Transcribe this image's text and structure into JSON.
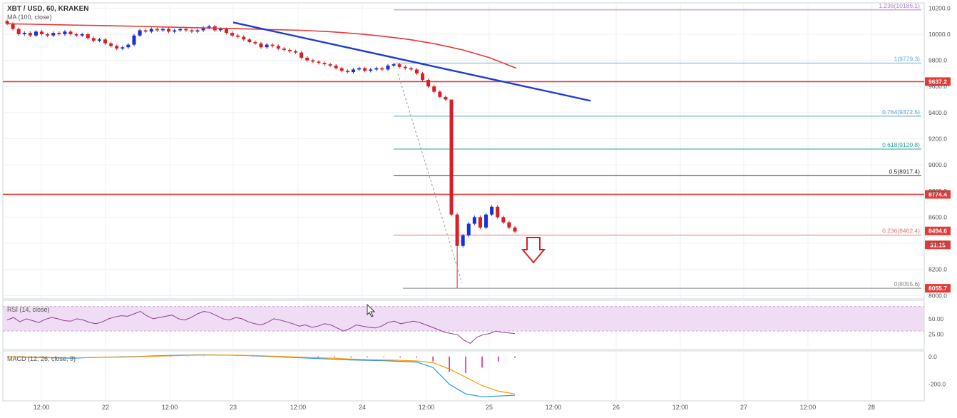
{
  "header": {
    "symbol": "XBT / USD, 60, KRAKEN",
    "ma_label": "MA (100, close)"
  },
  "rsi_label": "RSI (14, close)",
  "macd_label": "MACD (12, 26, close, 9)",
  "colors": {
    "up": "#1b2ed8",
    "down": "#d81f26",
    "ma": "#e53935",
    "trend": "#1e3bd6",
    "level": "#e53935",
    "rsi": "#8e3f8e",
    "rsi_band": "#f0dcf4",
    "macd": "#2196f3",
    "signal": "#ff9800",
    "hist": "#d81b88"
  },
  "chart_data": [
    {
      "type": "candlestick",
      "x_ticks": [
        "12:00",
        "22",
        "12:00",
        "23",
        "12:00",
        "24",
        "12:00",
        "25",
        "12:00",
        "26",
        "12:00",
        "27",
        "12:00",
        "28"
      ],
      "y_ticks": [
        "10200.0",
        "10000.0",
        "9800.0",
        "9600.0",
        "9400.0",
        "9200.0",
        "9000.0",
        "8800.0",
        "8600.0",
        "8400.0",
        "8200.0",
        "8000.0"
      ],
      "ylim": [
        7980,
        10240
      ],
      "close_series": [
        10080,
        10040,
        10000,
        10010,
        9990,
        10020,
        10000,
        9990,
        10010,
        10000,
        10020,
        10000,
        9990,
        10000,
        9970,
        9950,
        9960,
        9930,
        9910,
        9890,
        9900,
        9920,
        9990,
        10030,
        10020,
        10040,
        10030,
        10040,
        10020,
        10030,
        10040,
        10030,
        10020,
        10030,
        10050,
        10060,
        10030,
        10040,
        10010,
        9990,
        9980,
        9960,
        9940,
        9930,
        9900,
        9920,
        9910,
        9890,
        9880,
        9870,
        9860,
        9820,
        9800,
        9790,
        9780,
        9770,
        9760,
        9740,
        9720,
        9710,
        9730,
        9740,
        9720,
        9730,
        9740,
        9730,
        9760,
        9770,
        9750,
        9740,
        9730,
        9700,
        9650,
        9600,
        9560,
        9520,
        9500,
        8620,
        8380,
        8460,
        8550,
        8600,
        8520,
        8620,
        8680,
        8600,
        8560,
        8520,
        8490
      ],
      "fib_levels": [
        {
          "label": "1.236(10186.1)",
          "value": 10186.1,
          "color": "#b07fc7"
        },
        {
          "label": "1(9779.3)",
          "value": 9779.3,
          "color": "#6baed6"
        },
        {
          "label": "0.764(9372.5)",
          "value": 9372.5,
          "color": "#5aa0c8"
        },
        {
          "label": "0.618(9120.8)",
          "value": 9120.8,
          "color": "#26a69a"
        },
        {
          "label": "0.5(8917.4)",
          "value": 8917.4,
          "color": "#333333"
        },
        {
          "label": "0.236(8462.4)",
          "value": 8462.4,
          "color": "#e57373"
        },
        {
          "label": "0(8055.6)",
          "value": 8055.6,
          "color": "#888888"
        }
      ],
      "horizontal_levels": [
        9637.2,
        8774.4
      ],
      "price_tags": [
        {
          "label": "9637.2",
          "value": 9637.2,
          "color": "#e53935"
        },
        {
          "label": "8774.4",
          "value": 8774.4,
          "color": "#e53935"
        },
        {
          "label": "8494.6",
          "value": 8494.6,
          "color": "#e53935"
        },
        {
          "label": "31:15",
          "value": 8388,
          "color": "#e53935"
        },
        {
          "label": "8055.7",
          "value": 8055.7,
          "color": "#e53935"
        }
      ],
      "ma_series": [
        10080,
        10076,
        10072,
        10068,
        10064,
        10060,
        10055,
        10050,
        10045,
        10040,
        10035,
        10030,
        10020,
        10005,
        9985,
        9960,
        9925,
        9880,
        9820,
        9740
      ],
      "trendline": [
        [
          23.0,
          10090
        ],
        [
          25.8,
          9490
        ]
      ]
    },
    {
      "type": "line",
      "name": "RSI",
      "y_ticks": [
        "50.00",
        "25.00"
      ],
      "ylim": [
        0,
        80
      ],
      "values": [
        48,
        52,
        45,
        50,
        47,
        44,
        49,
        52,
        50,
        47,
        46,
        50,
        48,
        44,
        42,
        45,
        50,
        53,
        55,
        54,
        58,
        62,
        55,
        50,
        52,
        54,
        56,
        50,
        48,
        52,
        58,
        62,
        60,
        55,
        50,
        48,
        52,
        50,
        45,
        42,
        40,
        44,
        50,
        48,
        45,
        42,
        38,
        40,
        36,
        38,
        42,
        40,
        35,
        30,
        34,
        40,
        38,
        36,
        35,
        38,
        44,
        46,
        42,
        44,
        46,
        44,
        40,
        36,
        32,
        28,
        26,
        24,
        15,
        10,
        20,
        24,
        26,
        30,
        28,
        27,
        26
      ]
    },
    {
      "type": "line",
      "name": "MACD",
      "y_ticks": [
        "0.0",
        "-200.0"
      ],
      "ylim": [
        -320,
        40
      ],
      "macd": [
        0,
        -5,
        -8,
        -10,
        -12,
        -8,
        -5,
        -2,
        0,
        5,
        8,
        10,
        12,
        10,
        8,
        5,
        0,
        -5,
        -10,
        -15,
        -20,
        -25,
        -28,
        -30,
        -35,
        -40,
        -80,
        -200,
        -270,
        -290,
        -285,
        -280
      ],
      "signal": [
        0,
        -3,
        -5,
        -7,
        -9,
        -8,
        -6,
        -4,
        -2,
        2,
        5,
        8,
        10,
        10,
        9,
        7,
        3,
        -1,
        -5,
        -9,
        -13,
        -18,
        -22,
        -25,
        -28,
        -32,
        -45,
        -90,
        -150,
        -210,
        -250,
        -270
      ],
      "histogram": [
        0,
        -2,
        -3,
        -3,
        -3,
        0,
        1,
        2,
        2,
        3,
        3,
        2,
        2,
        0,
        -1,
        -2,
        -3,
        -4,
        -5,
        -6,
        -7,
        -7,
        -6,
        -5,
        -7,
        -8,
        -35,
        -110,
        -120,
        -80,
        -35,
        -10
      ]
    }
  ]
}
